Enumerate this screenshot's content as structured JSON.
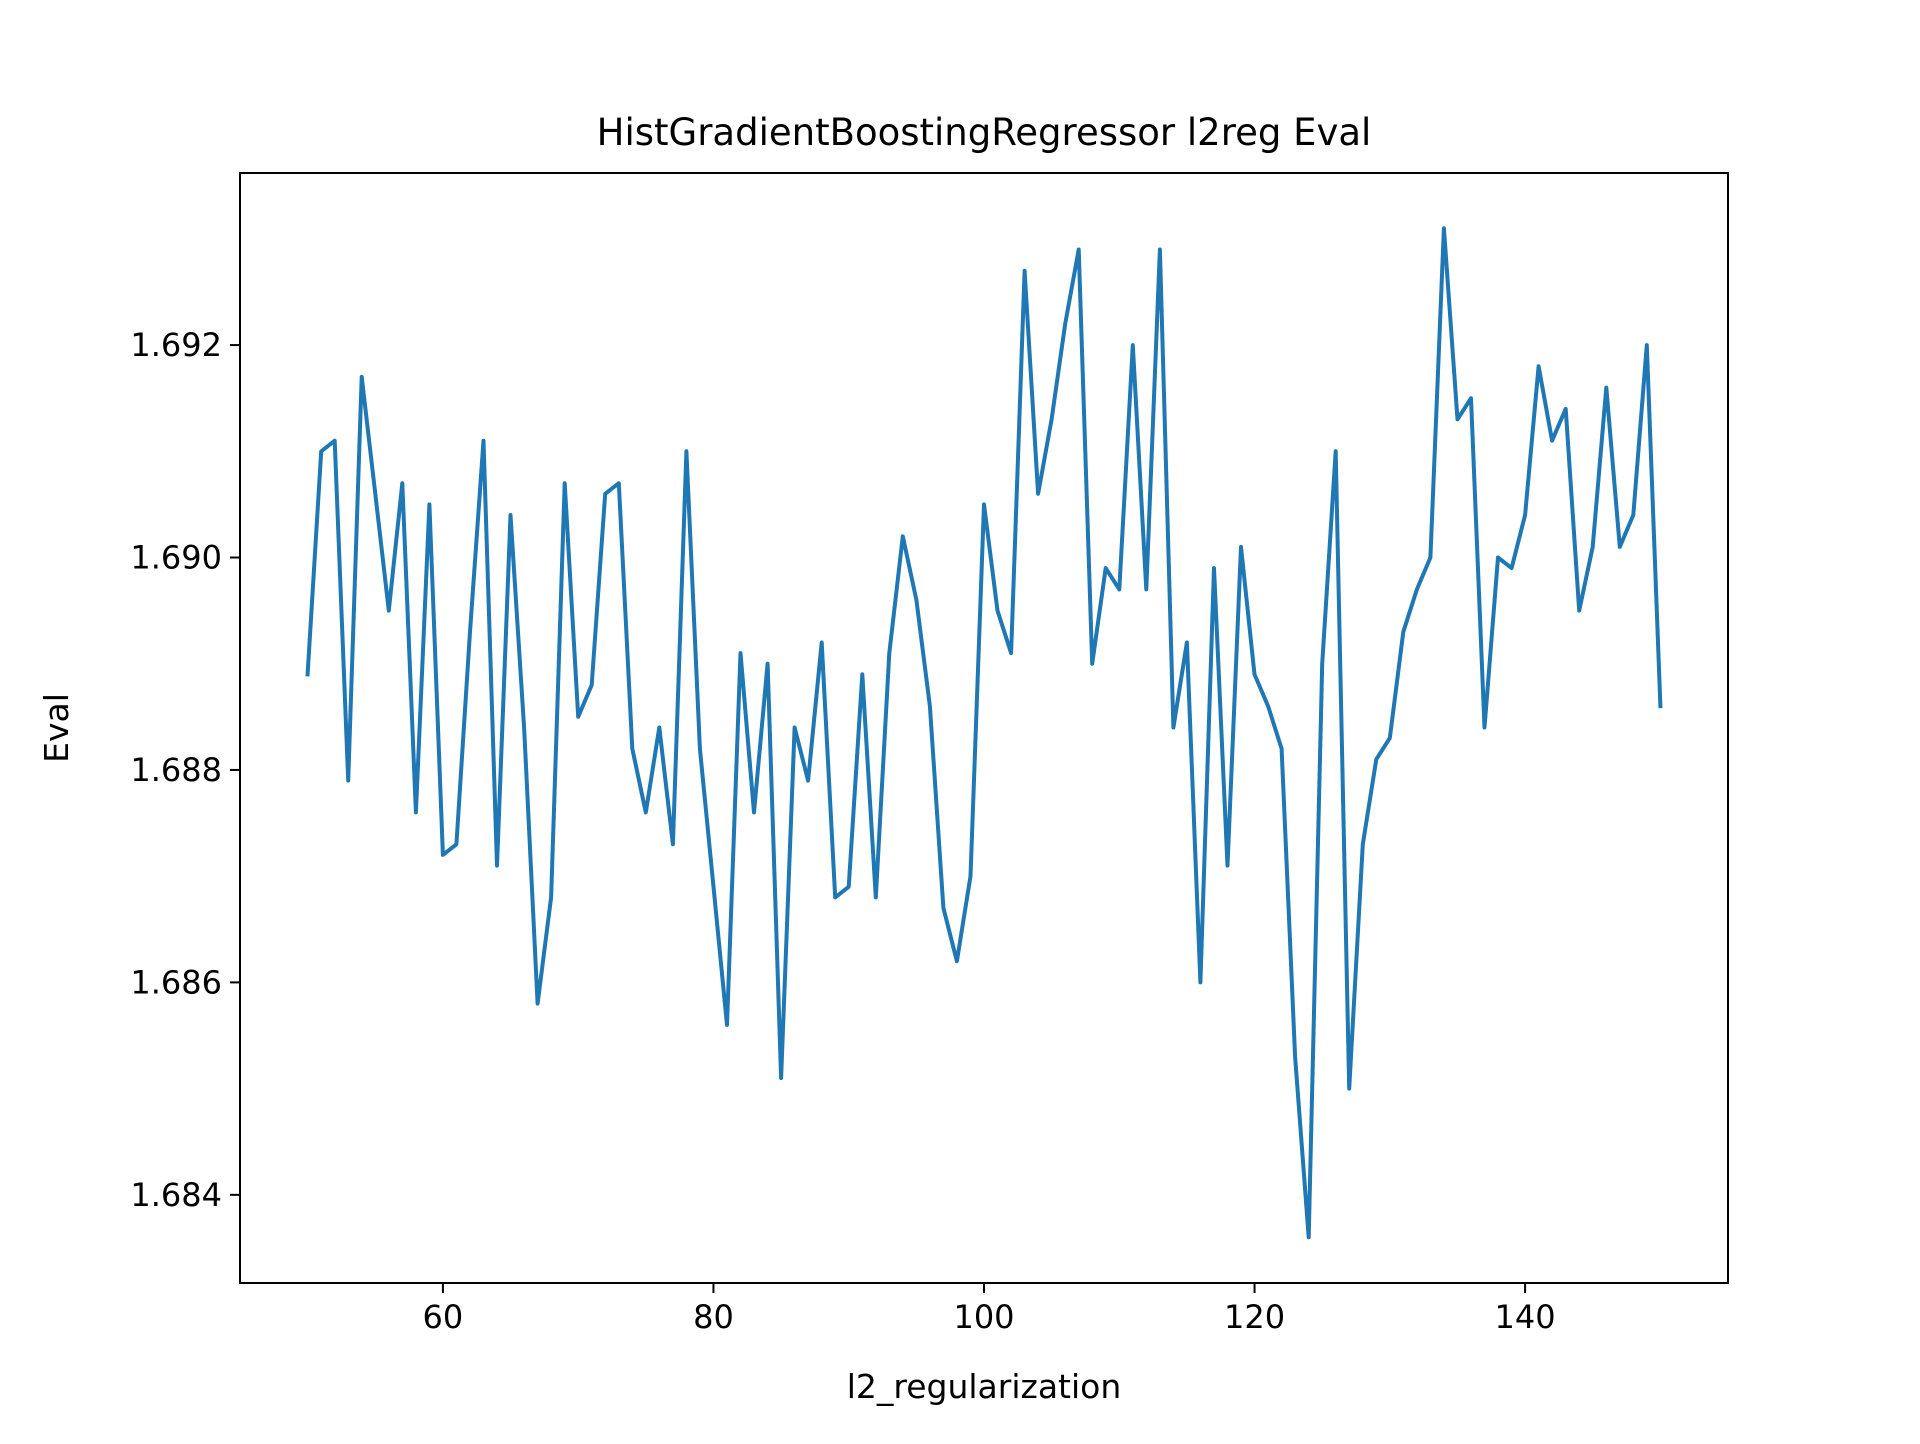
{
  "chart_data": {
    "type": "line",
    "title": "HistGradientBoostingRegressor l2reg Eval",
    "xlabel": "l2_regularization",
    "ylabel": "Eval",
    "xlim": [
      45,
      155
    ],
    "ylim": [
      1.68317,
      1.69362
    ],
    "xticks": [
      60,
      80,
      100,
      120,
      140
    ],
    "yticks": [
      1.684,
      1.686,
      1.688,
      1.69,
      1.692
    ],
    "xtick_labels": [
      "60",
      "80",
      "100",
      "120",
      "140"
    ],
    "ytick_labels": [
      "1.684",
      "1.686",
      "1.688",
      "1.690",
      "1.692"
    ],
    "grid": false,
    "series": [
      {
        "color": "#1f77b4",
        "x": [
          50,
          51,
          52,
          53,
          54,
          55,
          56,
          57,
          58,
          59,
          60,
          61,
          62,
          63,
          64,
          65,
          66,
          67,
          68,
          69,
          70,
          71,
          72,
          73,
          74,
          75,
          76,
          77,
          78,
          79,
          80,
          81,
          82,
          83,
          84,
          85,
          86,
          87,
          88,
          89,
          90,
          91,
          92,
          93,
          94,
          95,
          96,
          97,
          98,
          99,
          100,
          101,
          102,
          103,
          104,
          105,
          106,
          107,
          108,
          109,
          110,
          111,
          112,
          113,
          114,
          115,
          116,
          117,
          118,
          119,
          120,
          121,
          122,
          123,
          124,
          125,
          126,
          127,
          128,
          129,
          130,
          131,
          132,
          133,
          134,
          135,
          136,
          137,
          138,
          139,
          140,
          141,
          142,
          143,
          144,
          145,
          146,
          147,
          148,
          149,
          150
        ],
        "y": [
          1.6889,
          1.691,
          1.6911,
          1.6879,
          1.6917,
          1.6906,
          1.6895,
          1.6907,
          1.6876,
          1.6905,
          1.6872,
          1.6873,
          1.6893,
          1.6911,
          1.6871,
          1.6904,
          1.6884,
          1.6858,
          1.6868,
          1.6907,
          1.6885,
          1.6888,
          1.6906,
          1.6907,
          1.6882,
          1.6876,
          1.6884,
          1.6873,
          1.691,
          1.6882,
          1.6869,
          1.6856,
          1.6891,
          1.6876,
          1.689,
          1.6851,
          1.6884,
          1.6879,
          1.6892,
          1.6868,
          1.6869,
          1.6889,
          1.6868,
          1.6891,
          1.6902,
          1.6896,
          1.6886,
          1.6867,
          1.6862,
          1.687,
          1.6905,
          1.6895,
          1.6891,
          1.6927,
          1.6906,
          1.6913,
          1.6922,
          1.6929,
          1.689,
          1.6899,
          1.6897,
          1.692,
          1.6897,
          1.6929,
          1.6884,
          1.6892,
          1.686,
          1.6899,
          1.6871,
          1.6901,
          1.6889,
          1.6886,
          1.6882,
          1.6853,
          1.6836,
          1.689,
          1.691,
          1.685,
          1.6873,
          1.6881,
          1.6883,
          1.6893,
          1.6897,
          1.69,
          1.6931,
          1.6913,
          1.6915,
          1.6884,
          1.69,
          1.6899,
          1.6904,
          1.6918,
          1.6911,
          1.6914,
          1.6895,
          1.6901,
          1.6916,
          1.6901,
          1.6904,
          1.692,
          1.6886
        ]
      }
    ]
  }
}
